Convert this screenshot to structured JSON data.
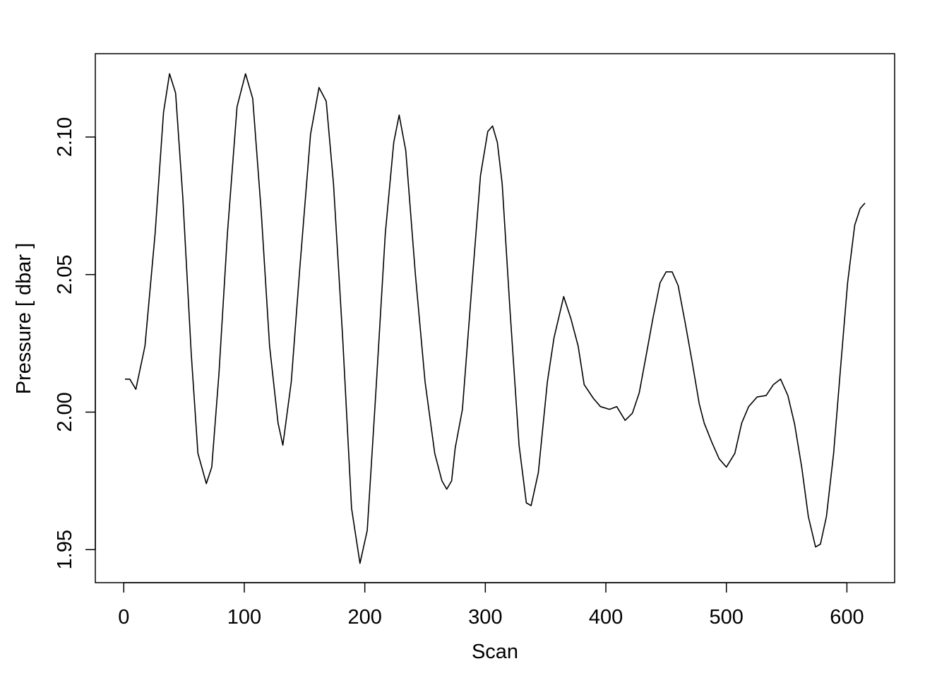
{
  "chart_data": {
    "type": "line",
    "title": "",
    "xlabel": "Scan",
    "ylabel": "Pressure [ dbar ]",
    "xlim": [
      -23.6,
      639.6
    ],
    "ylim": [
      1.938,
      2.1303
    ],
    "xticks": [
      0,
      100,
      200,
      300,
      400,
      500,
      600
    ],
    "xtick_labels": [
      "0",
      "100",
      "200",
      "300",
      "400",
      "500",
      "600"
    ],
    "yticks": [
      1.95,
      2.0,
      2.05,
      2.1
    ],
    "ytick_labels": [
      "1.95",
      "2.00",
      "2.05",
      "2.10"
    ],
    "grid": false,
    "line_color": "#000000",
    "x": [
      1,
      5,
      10,
      17.6,
      26,
      33,
      38,
      43,
      49,
      56,
      61.5,
      68.5,
      73,
      79,
      86,
      94,
      101,
      107,
      114,
      121,
      128,
      132,
      139,
      146,
      155,
      162,
      168,
      174,
      181.6,
      189,
      196,
      202,
      209,
      217,
      224,
      228.5,
      234,
      242,
      250,
      258,
      264,
      268,
      272,
      275,
      281,
      289,
      296,
      302,
      306,
      310,
      314,
      320.5,
      328,
      334,
      338,
      344,
      351.5,
      357,
      365,
      371,
      377,
      382,
      389.6,
      395.5,
      403,
      409,
      416,
      422,
      427.7,
      433.6,
      439,
      445,
      450,
      455,
      460,
      466,
      471.7,
      477.5,
      481.6,
      488,
      494,
      500,
      507,
      512.7,
      518.5,
      525.5,
      533,
      539,
      545,
      551,
      556.6,
      562.5,
      568,
      574,
      578,
      583,
      589,
      594.7,
      600.6,
      606.5,
      611,
      615
    ],
    "y": [
      2.012,
      2.012,
      2.0083,
      2.024,
      2.065,
      2.109,
      2.123,
      2.116,
      2.078,
      2.021,
      1.985,
      1.974,
      1.98,
      2.014,
      2.065,
      2.111,
      2.123,
      2.114,
      2.073,
      2.024,
      1.996,
      1.988,
      2.011,
      2.052,
      2.101,
      2.118,
      2.113,
      2.083,
      2.027,
      1.965,
      1.945,
      1.957,
      2.006,
      2.065,
      2.098,
      2.108,
      2.095,
      2.05,
      2.011,
      1.985,
      1.975,
      1.972,
      1.975,
      1.987,
      2.001,
      2.047,
      2.086,
      2.102,
      2.104,
      2.098,
      2.083,
      2.037,
      1.988,
      1.967,
      1.966,
      1.978,
      2.011,
      2.027,
      2.042,
      2.034,
      2.024,
      2.01,
      2.005,
      2.002,
      2.001,
      2.002,
      1.997,
      1.9996,
      2.007,
      2.021,
      2.034,
      2.047,
      2.051,
      2.051,
      2.046,
      2.032,
      2.018,
      2.003,
      1.996,
      1.989,
      1.983,
      1.98,
      1.985,
      1.996,
      2.002,
      2.0055,
      2.006,
      2.01,
      2.012,
      2.006,
      1.9957,
      1.98,
      1.962,
      1.951,
      1.952,
      1.962,
      1.985,
      2.016,
      2.047,
      2.068,
      2.074,
      2.076
    ]
  }
}
